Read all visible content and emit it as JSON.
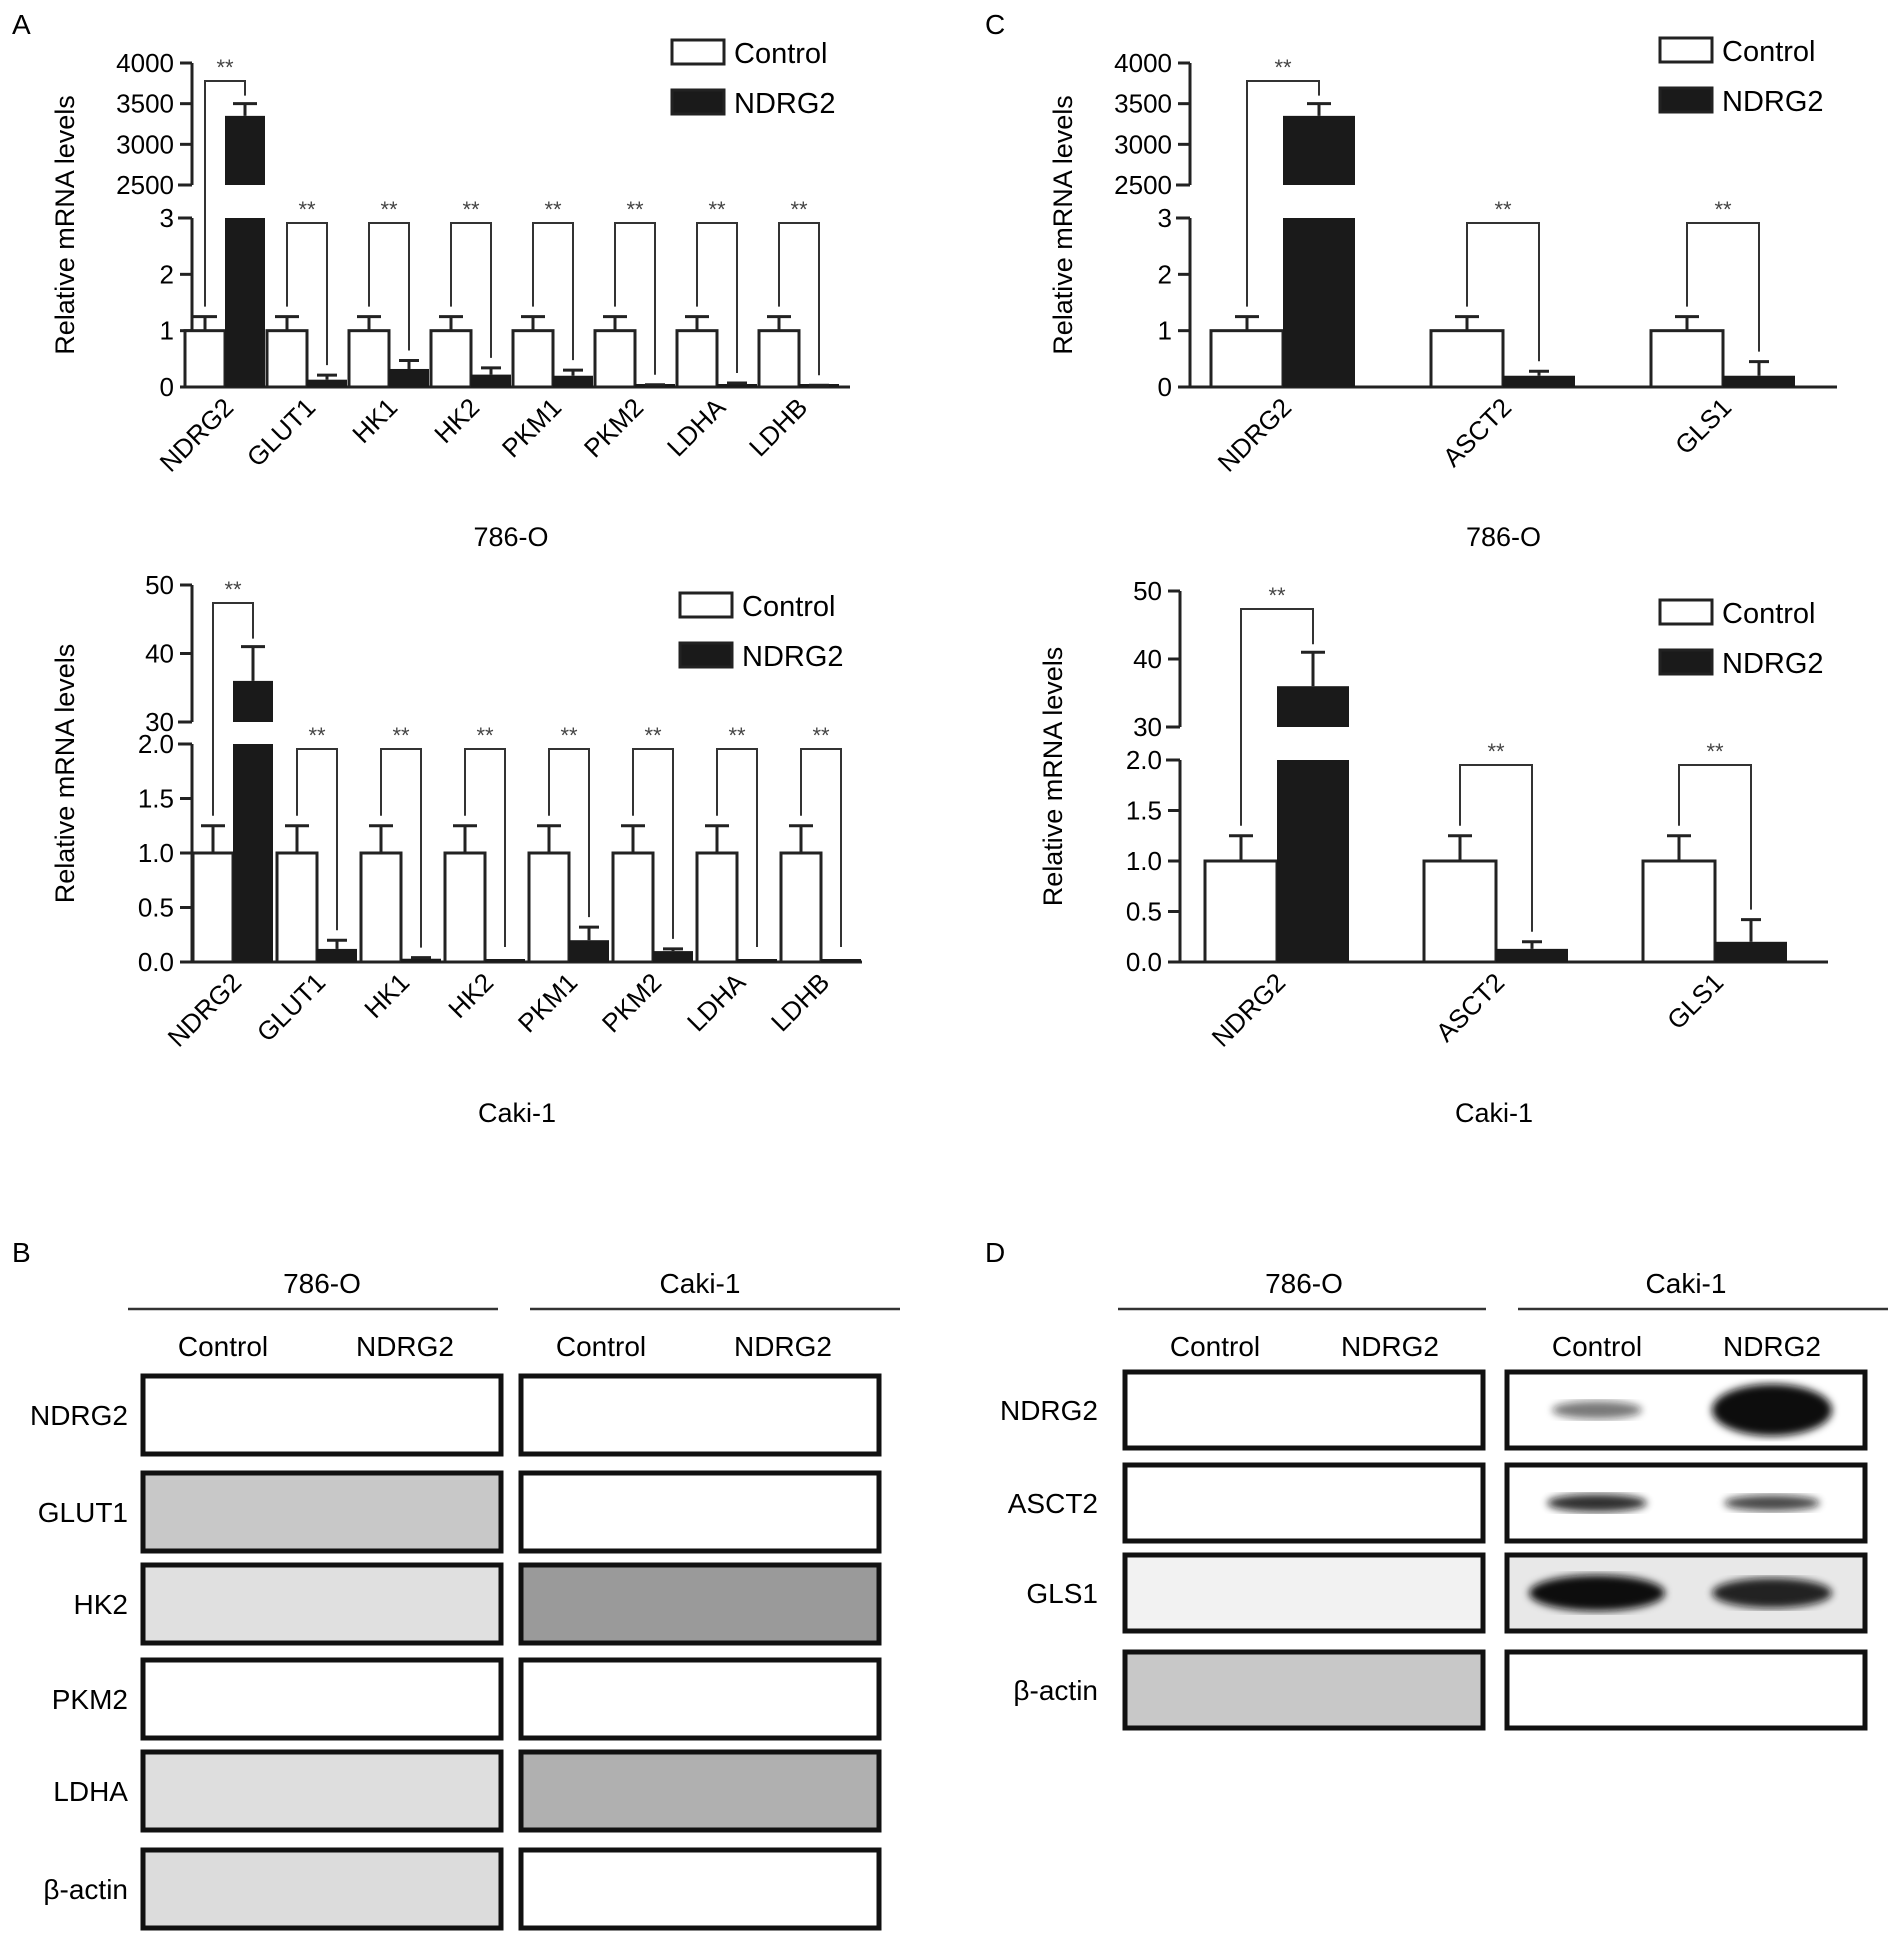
{
  "panels": {
    "A": "A",
    "B": "B",
    "C": "C",
    "D": "D"
  },
  "legend": {
    "control": "Control",
    "ndrg2": "NDRG2"
  },
  "sig": "**",
  "ylabel": "Relative mRNA levels",
  "chart_data": [
    {
      "id": "A-786-O",
      "type": "bar",
      "xlabel": "786-O",
      "ylabel": "Relative mRNA levels",
      "categories": [
        "NDRG2",
        "GLUT1",
        "HK1",
        "HK2",
        "PKM1",
        "PKM2",
        "LDHA",
        "LDHB"
      ],
      "series": [
        {
          "name": "Control",
          "values": [
            1,
            1,
            1,
            1,
            1,
            1,
            1,
            1
          ],
          "errors": [
            0.25,
            0.25,
            0.25,
            0.25,
            0.25,
            0.25,
            0.25,
            0.25
          ]
        },
        {
          "name": "NDRG2",
          "values": [
            3350,
            0.13,
            0.32,
            0.22,
            0.2,
            0.03,
            0.05,
            0.02
          ],
          "errors": [
            150,
            0.08,
            0.15,
            0.12,
            0.1,
            0.01,
            0.02,
            0.01
          ]
        }
      ],
      "axis_break": {
        "lower": [
          0,
          3
        ],
        "upper": [
          2500,
          4000
        ]
      },
      "yticks_lower": [
        "0",
        "1",
        "2",
        "3"
      ],
      "yticks_upper": [
        "2500",
        "3000",
        "3500",
        "4000"
      ],
      "significance": [
        "**",
        "**",
        "**",
        "**",
        "**",
        "**",
        "**",
        "**"
      ],
      "legend_position": "top-right"
    },
    {
      "id": "A-Caki-1",
      "type": "bar",
      "xlabel": "Caki-1",
      "ylabel": "Relative mRNA levels",
      "categories": [
        "NDRG2",
        "GLUT1",
        "HK1",
        "HK2",
        "PKM1",
        "PKM2",
        "LDHA",
        "LDHB"
      ],
      "series": [
        {
          "name": "Control",
          "values": [
            1,
            1,
            1,
            1,
            1,
            1,
            1,
            1
          ],
          "errors": [
            0.25,
            0.25,
            0.25,
            0.25,
            0.25,
            0.25,
            0.25,
            0.25
          ]
        },
        {
          "name": "NDRG2",
          "values": [
            36,
            0.12,
            0.03,
            0.0,
            0.2,
            0.1,
            0.0,
            0.0
          ],
          "errors": [
            5,
            0.08,
            0.01,
            0.0,
            0.12,
            0.02,
            0.0,
            0.0
          ]
        }
      ],
      "axis_break": {
        "lower": [
          0,
          2
        ],
        "upper": [
          30,
          50
        ]
      },
      "yticks_lower": [
        "0.0",
        "0.5",
        "1.0",
        "1.5",
        "2.0"
      ],
      "yticks_upper": [
        "30",
        "40",
        "50"
      ],
      "significance": [
        "**",
        "**",
        "**",
        "**",
        "**",
        "**",
        "**",
        "**"
      ],
      "legend_position": "top-right"
    },
    {
      "id": "C-786-O",
      "type": "bar",
      "xlabel": "786-O",
      "ylabel": "Relative mRNA levels",
      "categories": [
        "NDRG2",
        "ASCT2",
        "GLS1"
      ],
      "series": [
        {
          "name": "Control",
          "values": [
            1,
            1,
            1
          ],
          "errors": [
            0.25,
            0.25,
            0.25
          ]
        },
        {
          "name": "NDRG2",
          "values": [
            3350,
            0.2,
            0.2
          ],
          "errors": [
            150,
            0.08,
            0.25
          ]
        }
      ],
      "axis_break": {
        "lower": [
          0,
          3
        ],
        "upper": [
          2500,
          4000
        ]
      },
      "yticks_lower": [
        "0",
        "1",
        "2",
        "3"
      ],
      "yticks_upper": [
        "2500",
        "3000",
        "3500",
        "4000"
      ],
      "significance": [
        "**",
        "**",
        "**"
      ],
      "legend_position": "top-right"
    },
    {
      "id": "C-Caki-1",
      "type": "bar",
      "xlabel": "Caki-1",
      "ylabel": "Relative mRNA levels",
      "categories": [
        "NDRG2",
        "ASCT2",
        "GLS1"
      ],
      "series": [
        {
          "name": "Control",
          "values": [
            1,
            1,
            1
          ],
          "errors": [
            0.25,
            0.25,
            0.25
          ]
        },
        {
          "name": "NDRG2",
          "values": [
            36,
            0.13,
            0.2
          ],
          "errors": [
            5,
            0.07,
            0.22
          ]
        }
      ],
      "axis_break": {
        "lower": [
          0,
          2
        ],
        "upper": [
          30,
          50
        ]
      },
      "yticks_lower": [
        "0.0",
        "0.5",
        "1.0",
        "1.5",
        "2.0"
      ],
      "yticks_upper": [
        "30",
        "40",
        "50"
      ],
      "significance": [
        "**",
        "**",
        "**"
      ],
      "legend_position": "top-right"
    }
  ],
  "blots": {
    "B": {
      "groups": [
        "786-O",
        "Caki-1"
      ],
      "lanes": [
        "Control",
        "NDRG2"
      ],
      "rows": [
        "NDRG2",
        "GLUT1",
        "HK2",
        "PKM2",
        "LDHA",
        "β-actin"
      ]
    },
    "D": {
      "groups": [
        "786-O",
        "Caki-1"
      ],
      "lanes": [
        "Control",
        "NDRG2"
      ],
      "rows": [
        "NDRG2",
        "ASCT2",
        "GLS1",
        "β-actin"
      ]
    }
  }
}
